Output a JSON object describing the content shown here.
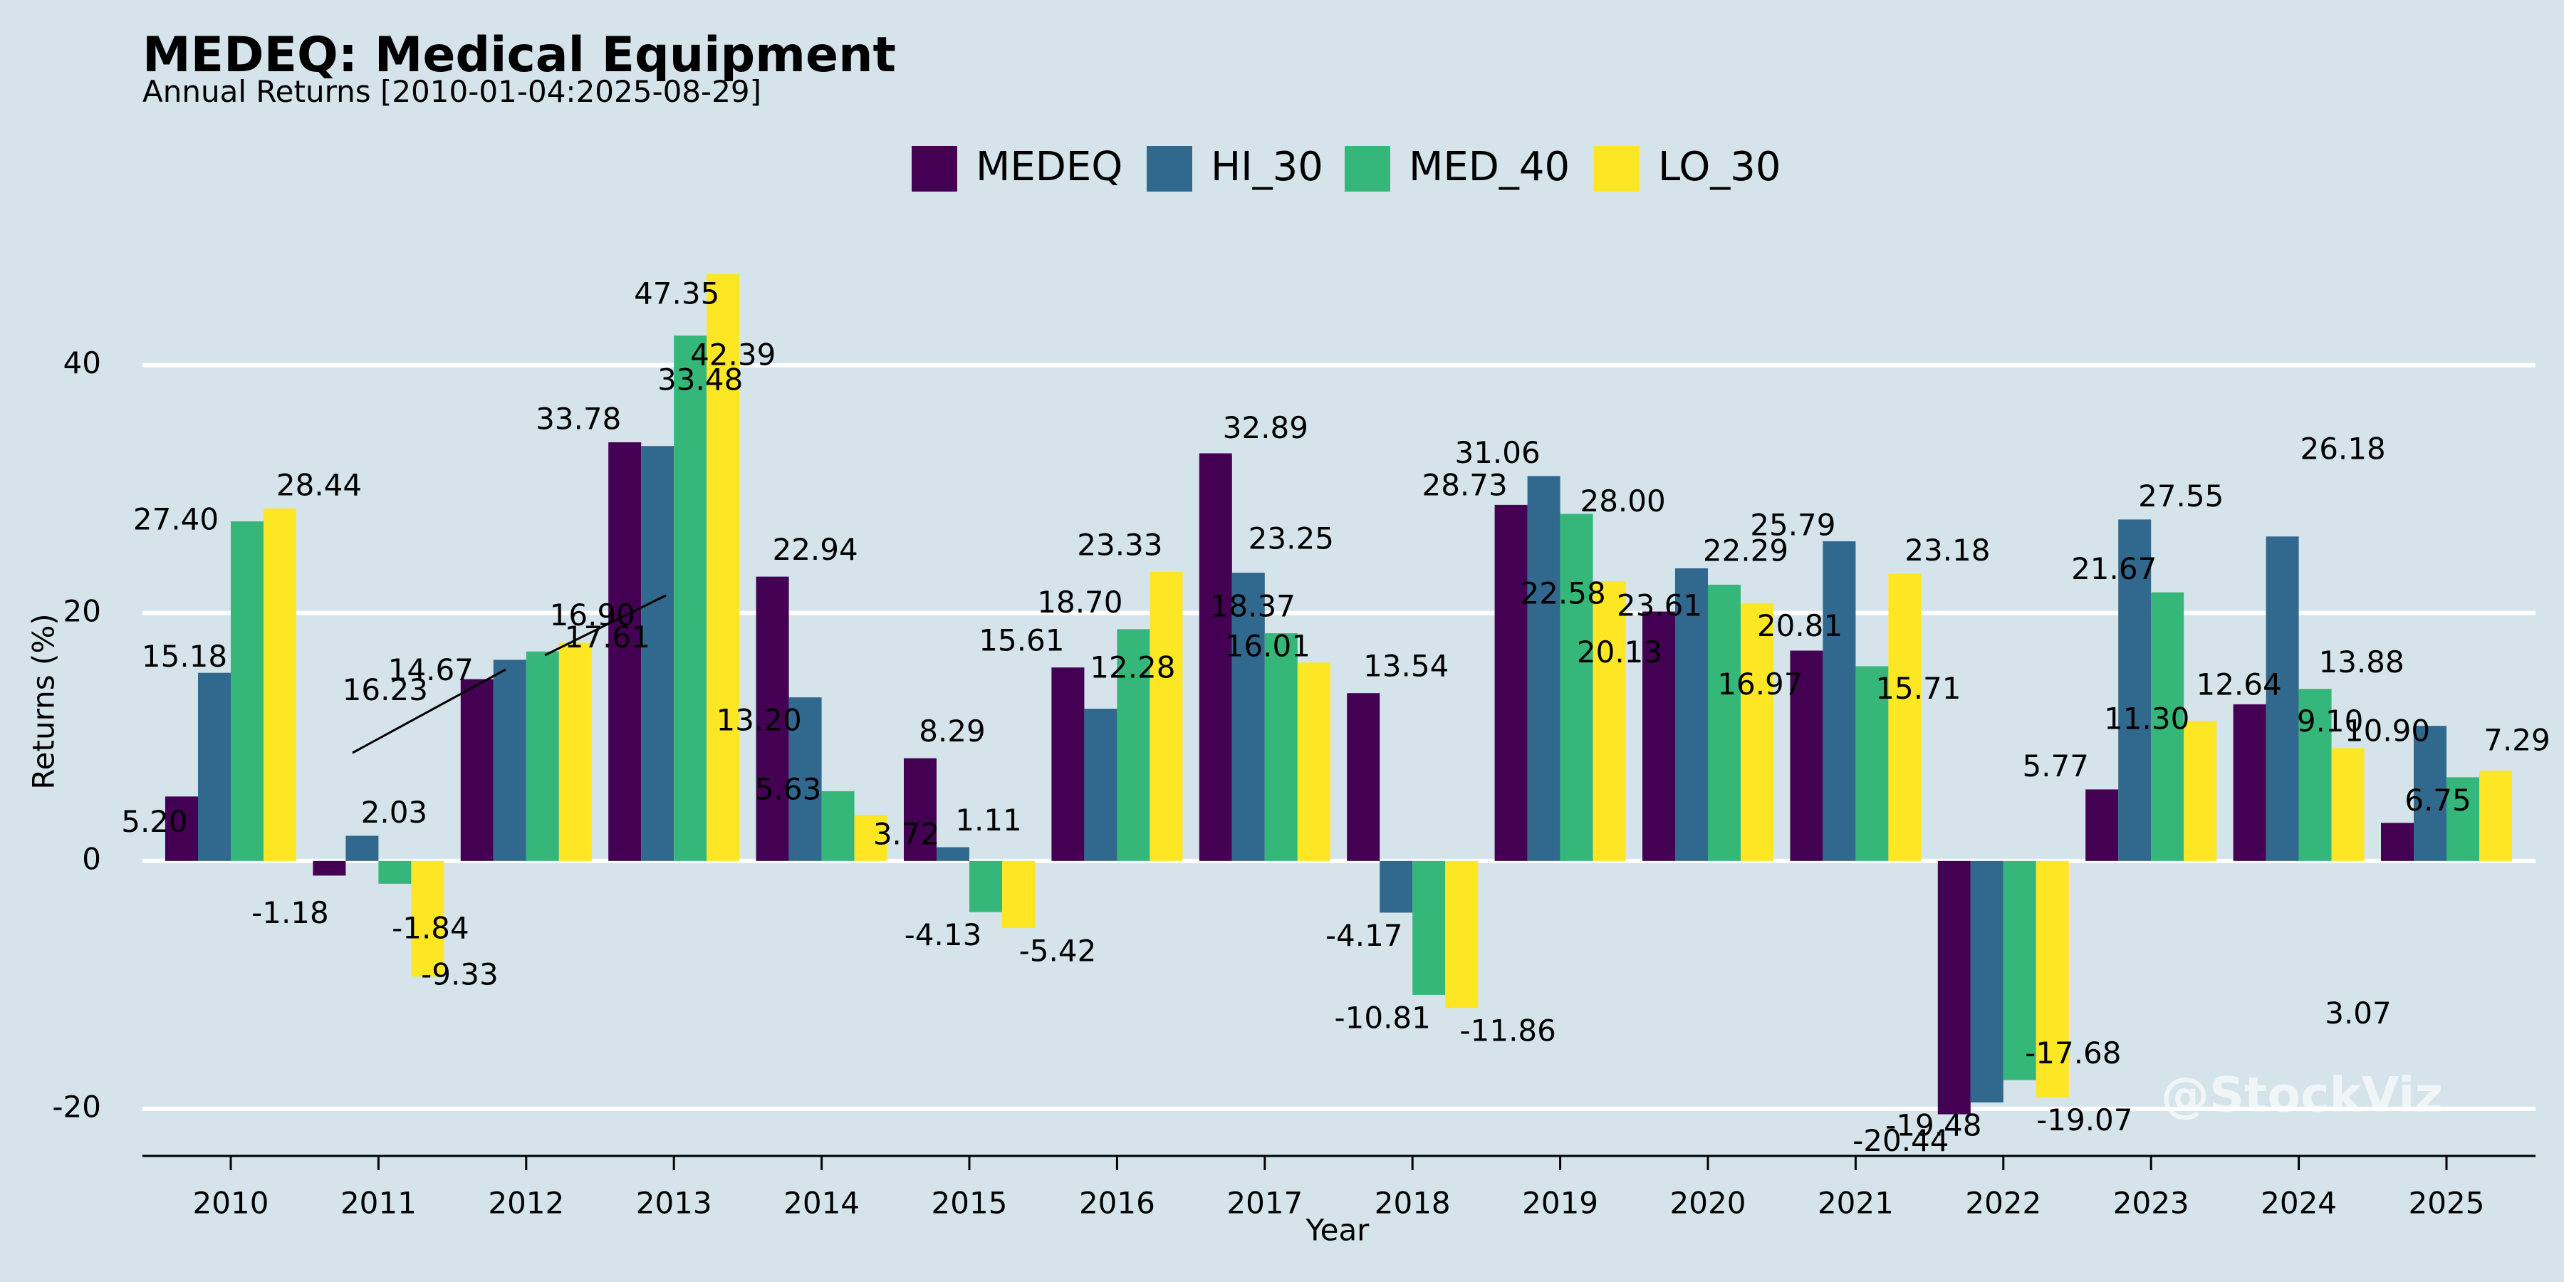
{
  "header": {
    "title": "MEDEQ: Medical Equipment",
    "subtitle": "Annual Returns [2010-01-04:2025-08-29]"
  },
  "watermark": "@StockViz",
  "chart_data": {
    "type": "bar",
    "title": "MEDEQ: Medical Equipment",
    "subtitle": "Annual Returns [2010-01-04:2025-08-29]",
    "xlabel": "Year",
    "ylabel": "Returns (%)",
    "ylim": [
      -23.8,
      52.8
    ],
    "yticks": [
      -20,
      0,
      20,
      40
    ],
    "grid": "horizontal",
    "legend_position": "top-center",
    "categories": [
      "2010",
      "2011",
      "2012",
      "2013",
      "2014",
      "2015",
      "2016",
      "2017",
      "2018",
      "2019",
      "2020",
      "2021",
      "2022",
      "2023",
      "2024",
      "2025"
    ],
    "series": [
      {
        "name": "MEDEQ",
        "color": "#440154",
        "values": [
          5.2,
          -1.18,
          14.67,
          33.78,
          22.94,
          8.29,
          15.61,
          32.89,
          13.54,
          28.73,
          20.13,
          16.97,
          -20.44,
          5.77,
          12.64,
          3.07
        ]
      },
      {
        "name": "HI_30",
        "color": "#31688e",
        "values": [
          15.18,
          2.03,
          16.23,
          33.48,
          13.2,
          1.11,
          12.28,
          23.25,
          -4.17,
          31.06,
          23.61,
          25.79,
          -19.48,
          27.55,
          26.18,
          10.9
        ]
      },
      {
        "name": "MED_40",
        "color": "#35b779",
        "values": [
          27.4,
          -1.84,
          16.9,
          42.39,
          5.63,
          -4.13,
          18.7,
          18.37,
          -10.81,
          28.0,
          22.29,
          15.71,
          -17.68,
          21.67,
          13.88,
          6.75
        ]
      },
      {
        "name": "LO_30",
        "color": "#fde725",
        "values": [
          28.44,
          -9.33,
          17.61,
          47.35,
          3.72,
          -5.42,
          23.33,
          16.01,
          -11.86,
          22.58,
          20.81,
          23.18,
          -19.07,
          11.3,
          9.1,
          7.29
        ]
      }
    ],
    "annotations": [
      "5.20",
      "15.18",
      "27.40",
      "28.44",
      "-1.18",
      "2.03",
      "-1.84",
      "-9.33",
      "14.67",
      "16.23",
      "16.90",
      "17.61",
      "33.78",
      "33.48",
      "42.39",
      "47.35",
      "22.94",
      "13.20",
      "5.63",
      "3.72",
      "8.29",
      "1.11",
      "-4.13",
      "-5.42",
      "15.61",
      "12.28",
      "18.70",
      "23.33",
      "32.89",
      "23.25",
      "18.37",
      "16.01",
      "13.54",
      "-4.17",
      "-10.81",
      "-11.86",
      "28.73",
      "31.06",
      "28.00",
      "22.58",
      "20.13",
      "23.61",
      "22.29",
      "20.81",
      "16.97",
      "25.79",
      "15.71",
      "23.18",
      "-20.44",
      "-19.48",
      "-17.68",
      "-19.07",
      "5.77",
      "27.55",
      "21.67",
      "11.30",
      "12.64",
      "26.18",
      "13.88",
      "9.10",
      "3.07",
      "10.90",
      "6.75",
      "7.29"
    ]
  }
}
